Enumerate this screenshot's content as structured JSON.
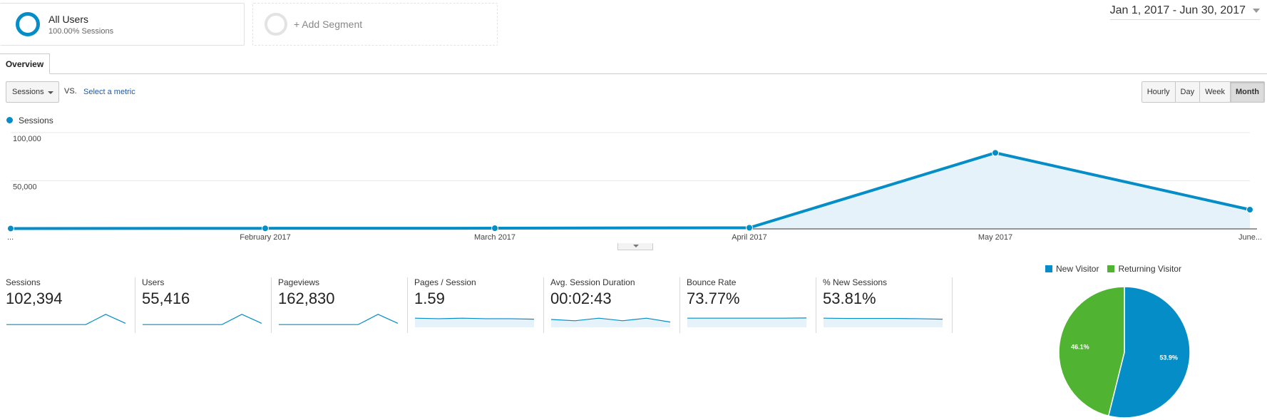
{
  "segments": {
    "all_users": {
      "title": "All Users",
      "subtitle": "100.00% Sessions"
    },
    "add_segment": {
      "label": "+ Add Segment"
    }
  },
  "date_range": "Jan 1, 2017 - Jun 30, 2017",
  "tabs": [
    {
      "label": "Overview",
      "active": true
    }
  ],
  "metric_selector": {
    "primary": "Sessions",
    "vs_label": "VS.",
    "secondary": "Select a metric"
  },
  "granularity": {
    "options": [
      "Hourly",
      "Day",
      "Week",
      "Month"
    ],
    "active": "Month"
  },
  "colors": {
    "accent": "#058dc7",
    "fill": "#e5f2f9",
    "returning": "#50b432"
  },
  "chart_data": {
    "type": "area",
    "series": [
      {
        "name": "Sessions",
        "values": [
          400,
          600,
          700,
          1200,
          79000,
          20000
        ]
      }
    ],
    "x": [
      "...",
      "February 2017",
      "March 2017",
      "April 2017",
      "May 2017",
      "June..."
    ],
    "yticks": [
      "100,000",
      "50,000"
    ],
    "ylim": [
      0,
      100000
    ],
    "grid": true,
    "legend": "top-left"
  },
  "metrics": [
    {
      "label": "Sessions",
      "value": "102,394",
      "spark": [
        1,
        1,
        1,
        1,
        1,
        9,
        2
      ]
    },
    {
      "label": "Users",
      "value": "55,416",
      "spark": [
        1,
        1,
        1,
        1,
        1,
        9,
        2
      ]
    },
    {
      "label": "Pageviews",
      "value": "162,830",
      "spark": [
        1,
        1,
        1,
        1,
        1,
        9,
        2
      ]
    },
    {
      "label": "Pages / Session",
      "value": "1.59",
      "spark": [
        6,
        5.6,
        6,
        5.6,
        5.6,
        5.2
      ]
    },
    {
      "label": "Avg. Session Duration",
      "value": "00:02:43",
      "spark": [
        5,
        4,
        6,
        4,
        6,
        3
      ]
    },
    {
      "label": "Bounce Rate",
      "value": "73.77%",
      "spark": [
        6,
        6,
        6,
        6,
        6,
        6.2
      ]
    },
    {
      "label": "% New Sessions",
      "value": "53.81%",
      "spark": [
        6,
        5.8,
        5.8,
        5.8,
        5.6,
        5.2
      ]
    }
  ],
  "pie": {
    "legend": [
      {
        "name": "New Visitor",
        "color": "#058dc7"
      },
      {
        "name": "Returning Visitor",
        "color": "#50b432"
      }
    ],
    "slices": [
      {
        "name": "New Visitor",
        "value": 53.9,
        "label": "53.9%"
      },
      {
        "name": "Returning Visitor",
        "value": 46.1,
        "label": "46.1%"
      }
    ]
  }
}
